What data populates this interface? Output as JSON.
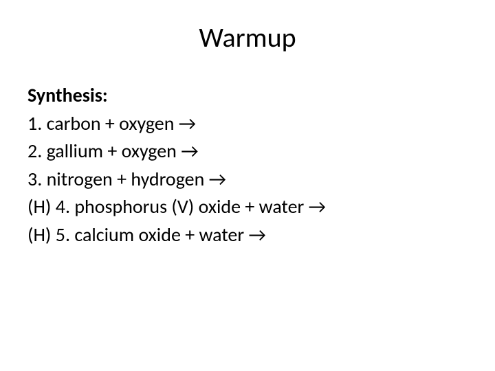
{
  "slide": {
    "title": "Warmup",
    "section_heading": "Synthesis:",
    "items": [
      "1.  carbon + oxygen →",
      "2.  gallium + oxygen →",
      "3.  nitrogen + hydrogen →",
      "(H) 4.  phosphorus (V) oxide + water  →",
      "(H) 5.  calcium oxide + water →"
    ]
  },
  "styles": {
    "background_color": "#ffffff",
    "text_color": "#000000",
    "title_fontsize": 40,
    "body_fontsize": 28,
    "font_family": "Calibri"
  }
}
